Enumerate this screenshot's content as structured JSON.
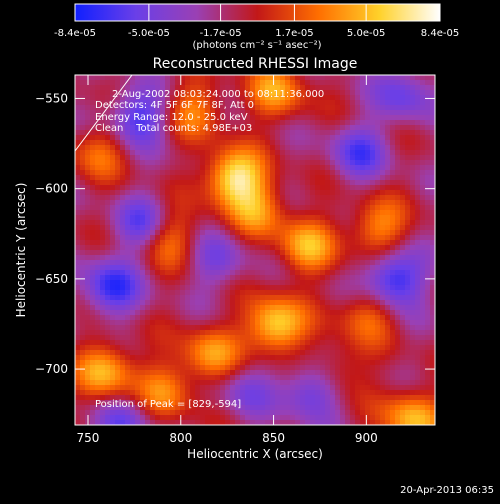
{
  "colorbar": {
    "ticks": [
      "-8.4e-05",
      "-5.0e-05",
      "-1.7e-05",
      "1.7e-05",
      "5.0e-05",
      "8.4e-05"
    ],
    "tick_values": [
      -8.4e-05,
      -5e-05,
      -1.7e-05,
      1.7e-05,
      5e-05,
      8.4e-05
    ],
    "range": [
      -8.4e-05,
      8.4e-05
    ],
    "units": "(photons cm⁻² s⁻¹ asec⁻²)",
    "colors": [
      "#1020ff",
      "#6a3fe8",
      "#9a40b4",
      "#c21818",
      "#ff6e00",
      "#ffd12a",
      "#ffffff"
    ]
  },
  "chart_data": {
    "type": "heatmap",
    "title": "Reconstructed RHESSI Image",
    "xlabel": "Heliocentric X (arcsec)",
    "ylabel": "Heliocentric Y (arcsec)",
    "xlim": [
      743,
      937
    ],
    "ylim": [
      -731,
      -537
    ],
    "xticks": [
      750,
      800,
      850,
      900
    ],
    "yticks": [
      -550,
      -600,
      -650,
      -700
    ],
    "xtick_labels": [
      "750",
      "800",
      "850",
      "900"
    ],
    "ytick_labels": [
      "−550",
      "−600",
      "−650",
      "−700"
    ],
    "annotations": [
      "2-Aug-2002 08:03:24.000 to 08:11:36.000",
      "Detectors: 4F 5F 6F 7F 8F, Att 0",
      "Energy Range: 12.0 - 25.0 keV",
      "Clean    Total counts: 4.98E+03"
    ],
    "peak_label": "Position of Peak = [829,-594]",
    "peak": [
      829,
      -594
    ],
    "sources": [
      {
        "x": 829,
        "y": -594,
        "amp": 8.4e-05
      },
      {
        "x": 851,
        "y": -676,
        "amp": 7.6e-05
      },
      {
        "x": 760,
        "y": -701,
        "amp": 6e-05
      },
      {
        "x": 925,
        "y": -727,
        "amp": 6.2e-05
      },
      {
        "x": 852,
        "y": -546,
        "amp": 5e-05
      },
      {
        "x": 808,
        "y": -556,
        "amp": 4.2e-05
      },
      {
        "x": 868,
        "y": -632,
        "amp": 5.5e-05
      },
      {
        "x": 906,
        "y": -622,
        "amp": 4.8e-05
      },
      {
        "x": 793,
        "y": -627,
        "amp": 4.6e-05
      },
      {
        "x": 816,
        "y": -692,
        "amp": 5e-05
      },
      {
        "x": 792,
        "y": -712,
        "amp": 4.4e-05
      },
      {
        "x": 842,
        "y": -612,
        "amp": 4.5e-05
      },
      {
        "x": 755,
        "y": -580,
        "amp": 3.4e-05
      },
      {
        "x": 900,
        "y": -670,
        "amp": 3.6e-05
      },
      {
        "x": 885,
        "y": -700,
        "amp": 3e-05
      },
      {
        "x": 762,
        "y": -655,
        "amp": -6e-05
      },
      {
        "x": 915,
        "y": -650,
        "amp": -7e-05
      },
      {
        "x": 777,
        "y": -560,
        "amp": -5.6e-05
      },
      {
        "x": 780,
        "y": -620,
        "amp": -5e-05
      },
      {
        "x": 896,
        "y": -580,
        "amp": -4.6e-05
      },
      {
        "x": 870,
        "y": -712,
        "amp": -5e-05
      },
      {
        "x": 820,
        "y": -640,
        "amp": -3.4e-05
      },
      {
        "x": 770,
        "y": -730,
        "amp": -3.8e-05
      },
      {
        "x": 920,
        "y": -548,
        "amp": -4.2e-05
      },
      {
        "x": 835,
        "y": -712,
        "amp": -3e-05
      }
    ]
  },
  "timestamp": "20-Apr-2013 06:35"
}
